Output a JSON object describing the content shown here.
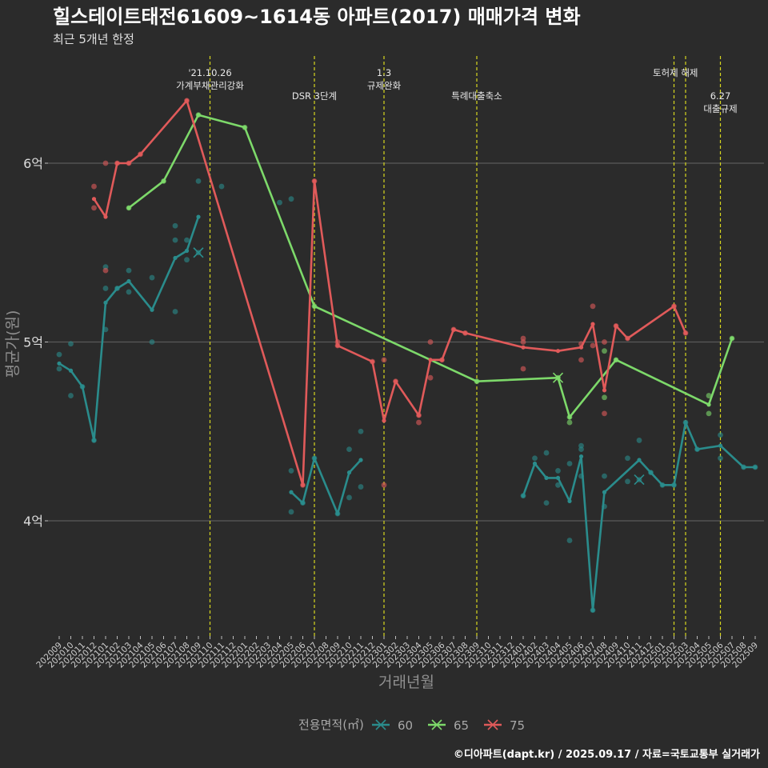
{
  "chart_data": {
    "type": "line",
    "title": "힐스테이트태전61609~1614동 아파트(2017) 매매가격 변화",
    "subtitle": "최근 5개년 한정",
    "xlabel": "거래년월",
    "ylabel": "평균가(원)",
    "ylim": [
      3.4,
      6.75
    ],
    "y_ticks": [
      4,
      5,
      6
    ],
    "y_tick_labels": [
      "4억",
      "5억",
      "6억"
    ],
    "grid": "horizontal",
    "legend_position": "bottom",
    "legend_title": "전용면적(㎡)",
    "caption": "©디아파트(dapt.kr) / 2025.09.17 / 자료=국토교통부 실거래가",
    "colors": {
      "60": "#2a8c8c",
      "65": "#7dd96a",
      "75": "#e05a5a",
      "annotation": "#d8d81e"
    },
    "categories": [
      "202009",
      "202010",
      "202011",
      "202012",
      "202101",
      "202102",
      "202103",
      "202104",
      "202105",
      "202106",
      "202107",
      "202108",
      "202109",
      "202110",
      "202111",
      "202112",
      "202201",
      "202202",
      "202203",
      "202204",
      "202205",
      "202206",
      "202207",
      "202208",
      "202209",
      "202210",
      "202211",
      "202212",
      "202301",
      "202302",
      "202303",
      "202304",
      "202305",
      "202306",
      "202307",
      "202308",
      "202309",
      "202310",
      "202311",
      "202312",
      "202401",
      "202402",
      "202403",
      "202404",
      "202405",
      "202406",
      "202407",
      "202408",
      "202409",
      "202410",
      "202411",
      "202412",
      "202501",
      "202502",
      "202503",
      "202504",
      "202505",
      "202506",
      "202507",
      "202508",
      "202509"
    ],
    "events": [
      {
        "date": "202110",
        "label": "'21.10.26\n가계부채관리강화",
        "level": 0
      },
      {
        "date": "202207",
        "label": "DSR 3단계",
        "level": 1
      },
      {
        "date": "202301",
        "label": "1.3\n규제완화",
        "level": 0
      },
      {
        "date": "202309",
        "label": "특례대출축소",
        "level": 1
      },
      {
        "date": "202502",
        "label": "토허제 해제",
        "level": 0,
        "anchor": "end"
      },
      {
        "date": "202503",
        "label": "",
        "level": 0
      },
      {
        "date": "202506",
        "label": "6.27\n대출규제",
        "level": 1
      }
    ],
    "series": [
      {
        "name": "60",
        "lines": [
          [
            [
              "202009",
              4.88
            ],
            [
              "202010",
              4.84
            ],
            [
              "202011",
              4.75
            ],
            [
              "202012",
              4.45
            ],
            [
              "202101",
              5.22
            ],
            [
              "202102",
              5.3
            ],
            [
              "202103",
              5.34
            ],
            [
              "202105",
              5.18
            ],
            [
              "202107",
              5.47
            ],
            [
              "202108",
              5.51
            ],
            [
              "202109",
              5.7
            ]
          ],
          [
            [
              "202205",
              4.16
            ],
            [
              "202206",
              4.1
            ],
            [
              "202207",
              4.35
            ],
            [
              "202209",
              4.04
            ],
            [
              "202210",
              4.27
            ],
            [
              "202211",
              4.34
            ]
          ],
          [
            [
              "202401",
              4.14
            ],
            [
              "202402",
              4.32
            ],
            [
              "202403",
              4.24
            ],
            [
              "202404",
              4.24
            ],
            [
              "202405",
              4.11
            ],
            [
              "202406",
              4.36
            ],
            [
              "202407",
              3.5
            ],
            [
              "202408",
              4.16
            ],
            [
              "202411",
              4.34
            ],
            [
              "202412",
              4.27
            ],
            [
              "202501",
              4.2
            ],
            [
              "202502",
              4.2
            ],
            [
              "202503",
              4.55
            ],
            [
              "202504",
              4.4
            ],
            [
              "202506",
              4.42
            ],
            [
              "202508",
              4.3
            ],
            [
              "202509",
              4.3
            ]
          ]
        ],
        "points": [
          [
            "202009",
            4.93
          ],
          [
            "202009",
            4.85
          ],
          [
            "202010",
            4.99
          ],
          [
            "202010",
            4.7
          ],
          [
            "202011",
            4.75
          ],
          [
            "202012",
            4.45
          ],
          [
            "202101",
            5.42
          ],
          [
            "202101",
            5.07
          ],
          [
            "202101",
            5.3
          ],
          [
            "202102",
            5.3
          ],
          [
            "202103",
            5.4
          ],
          [
            "202103",
            5.28
          ],
          [
            "202105",
            5.36
          ],
          [
            "202105",
            5.0
          ],
          [
            "202107",
            5.57
          ],
          [
            "202107",
            5.65
          ],
          [
            "202107",
            5.17
          ],
          [
            "202108",
            5.46
          ],
          [
            "202108",
            5.57
          ],
          [
            "202109",
            5.9
          ],
          [
            "202109",
            5.5
          ],
          [
            "202111",
            5.87
          ],
          [
            "202204",
            5.78
          ],
          [
            "202205",
            5.8
          ],
          [
            "202205",
            4.05
          ],
          [
            "202205",
            4.28
          ],
          [
            "202206",
            4.1
          ],
          [
            "202207",
            4.35
          ],
          [
            "202209",
            4.04
          ],
          [
            "202210",
            4.4
          ],
          [
            "202210",
            4.13
          ],
          [
            "202211",
            4.19
          ],
          [
            "202211",
            4.5
          ],
          [
            "202401",
            4.14
          ],
          [
            "202402",
            4.35
          ],
          [
            "202403",
            4.1
          ],
          [
            "202403",
            4.38
          ],
          [
            "202404",
            4.2
          ],
          [
            "202404",
            4.28
          ],
          [
            "202405",
            4.32
          ],
          [
            "202405",
            3.89
          ],
          [
            "202406",
            4.4
          ],
          [
            "202406",
            4.42
          ],
          [
            "202406",
            4.25
          ],
          [
            "202407",
            3.5
          ],
          [
            "202408",
            4.08
          ],
          [
            "202408",
            4.25
          ],
          [
            "202410",
            4.35
          ],
          [
            "202410",
            4.22
          ],
          [
            "202411",
            4.45
          ],
          [
            "202411",
            4.23
          ],
          [
            "202412",
            4.27
          ],
          [
            "202501",
            4.2
          ],
          [
            "202502",
            4.2
          ],
          [
            "202503",
            4.55
          ],
          [
            "202504",
            4.4
          ],
          [
            "202506",
            4.35
          ],
          [
            "202506",
            4.48
          ],
          [
            "202508",
            4.3
          ],
          [
            "202509",
            4.3
          ]
        ],
        "cross_markers": [
          [
            "202109",
            5.5
          ],
          [
            "202411",
            4.23
          ]
        ]
      },
      {
        "name": "65",
        "lines": [
          [
            [
              "202103",
              5.75
            ],
            [
              "202106",
              5.9
            ],
            [
              "202109",
              6.27
            ],
            [
              "202201",
              6.2
            ],
            [
              "202207",
              5.2
            ],
            [
              "202309",
              4.78
            ],
            [
              "202404",
              4.8
            ],
            [
              "202405",
              4.58
            ],
            [
              "202409",
              4.9
            ],
            [
              "202505",
              4.65
            ],
            [
              "202507",
              5.02
            ]
          ]
        ],
        "points": [
          [
            "202103",
            5.75
          ],
          [
            "202106",
            5.9
          ],
          [
            "202109",
            6.27
          ],
          [
            "202201",
            6.2
          ],
          [
            "202207",
            5.2
          ],
          [
            "202309",
            4.78
          ],
          [
            "202404",
            4.8
          ],
          [
            "202405",
            4.55
          ],
          [
            "202405",
            4.58
          ],
          [
            "202408",
            4.95
          ],
          [
            "202408",
            4.69
          ],
          [
            "202409",
            4.9
          ],
          [
            "202505",
            4.7
          ],
          [
            "202505",
            4.6
          ],
          [
            "202507",
            5.02
          ]
        ],
        "cross_markers": [
          [
            "202404",
            4.8
          ]
        ]
      },
      {
        "name": "75",
        "lines": [
          [
            [
              "202012",
              5.8
            ],
            [
              "202101",
              5.7
            ],
            [
              "202102",
              6.0
            ],
            [
              "202103",
              6.0
            ],
            [
              "202104",
              6.05
            ],
            [
              "202108",
              6.35
            ],
            [
              "202206",
              4.2
            ],
            [
              "202207",
              5.9
            ],
            [
              "202209",
              4.98
            ],
            [
              "202212",
              4.89
            ],
            [
              "202301",
              4.56
            ],
            [
              "202302",
              4.78
            ],
            [
              "202304",
              4.59
            ],
            [
              "202305",
              4.9
            ],
            [
              "202306",
              4.9
            ],
            [
              "202307",
              5.07
            ],
            [
              "202308",
              5.05
            ],
            [
              "202401",
              4.97
            ],
            [
              "202404",
              4.95
            ],
            [
              "202406",
              4.97
            ],
            [
              "202407",
              5.1
            ],
            [
              "202408",
              4.73
            ],
            [
              "202409",
              5.09
            ],
            [
              "202410",
              5.02
            ],
            [
              "202502",
              5.2
            ],
            [
              "202503",
              5.05
            ]
          ]
        ],
        "points": [
          [
            "202012",
            5.75
          ],
          [
            "202012",
            5.87
          ],
          [
            "202101",
            5.4
          ],
          [
            "202101",
            6.0
          ],
          [
            "202102",
            6.0
          ],
          [
            "202103",
            6.0
          ],
          [
            "202104",
            6.05
          ],
          [
            "202108",
            6.35
          ],
          [
            "202206",
            4.2
          ],
          [
            "202207",
            5.9
          ],
          [
            "202209",
            4.98
          ],
          [
            "202209",
            5.0
          ],
          [
            "202212",
            4.89
          ],
          [
            "202301",
            4.9
          ],
          [
            "202301",
            4.2
          ],
          [
            "202302",
            4.78
          ],
          [
            "202304",
            4.55
          ],
          [
            "202304",
            4.59
          ],
          [
            "202305",
            4.8
          ],
          [
            "202305",
            5.0
          ],
          [
            "202306",
            4.9
          ],
          [
            "202307",
            5.07
          ],
          [
            "202308",
            5.05
          ],
          [
            "202401",
            5.0
          ],
          [
            "202401",
            5.02
          ],
          [
            "202401",
            4.85
          ],
          [
            "202406",
            4.99
          ],
          [
            "202406",
            4.9
          ],
          [
            "202407",
            5.2
          ],
          [
            "202407",
            4.98
          ],
          [
            "202408",
            5.0
          ],
          [
            "202408",
            4.6
          ],
          [
            "202409",
            5.09
          ],
          [
            "202410",
            5.02
          ],
          [
            "202502",
            5.2
          ],
          [
            "202503",
            5.05
          ]
        ],
        "cross_markers": []
      }
    ]
  }
}
